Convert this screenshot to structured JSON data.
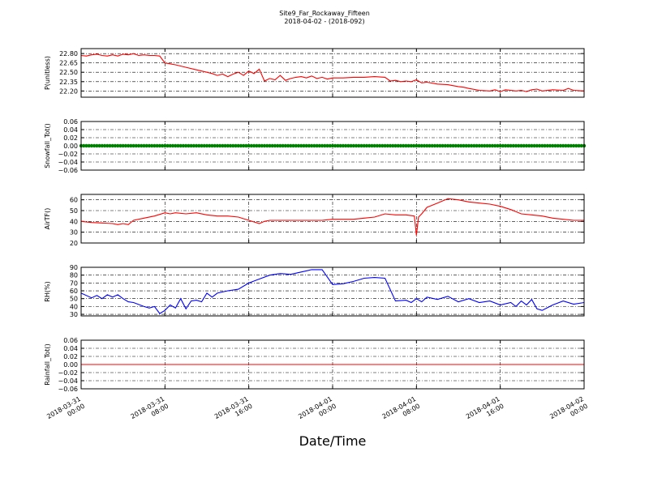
{
  "title": "Site9_Far_Rockaway_Fifteen",
  "subtitle": "2018-04-02 - (2018-092)",
  "chart_data": {
    "type": "line",
    "xlabel": "Date/Time",
    "xlim": [
      "2018-03-31 00:00",
      "2018-04-02 00:00"
    ],
    "x_ticks": [
      {
        "d": "2018-03-31",
        "t": "00:00",
        "h": 0
      },
      {
        "d": "2018-03-31",
        "t": "08:00",
        "h": 8
      },
      {
        "d": "2018-03-31",
        "t": "16:00",
        "h": 16
      },
      {
        "d": "2018-04-01",
        "t": "00:00",
        "h": 24
      },
      {
        "d": "2018-04-01",
        "t": "08:00",
        "h": 32
      },
      {
        "d": "2018-04-01",
        "t": "16:00",
        "h": 40
      },
      {
        "d": "2018-04-02",
        "t": "00:00",
        "h": 48
      }
    ],
    "grid": true,
    "panels": [
      {
        "ylabel": "P(unitless)",
        "ylim": [
          22.1,
          22.88
        ],
        "yticks": [
          "22.80",
          "22.65",
          "22.50",
          "22.35",
          "22.20"
        ],
        "ytick_values": [
          22.8,
          22.65,
          22.5,
          22.35,
          22.2
        ],
        "color": "#ff0000",
        "style": "line",
        "x_hours": [
          0,
          0.5,
          1,
          1.5,
          2,
          2.5,
          3,
          3.5,
          4,
          4.5,
          5,
          5.5,
          6,
          6.5,
          7,
          7.5,
          8,
          9,
          10,
          11,
          12,
          12.5,
          13,
          13.5,
          14,
          14.5,
          15,
          15.5,
          16,
          16.5,
          17,
          17.5,
          18,
          18.5,
          19,
          19.5,
          20,
          20.5,
          21,
          21.5,
          22,
          22.5,
          23,
          23.5,
          24,
          25,
          26,
          27,
          28,
          29,
          29.5,
          30,
          30.5,
          31,
          31.5,
          32,
          32.5,
          33,
          34,
          35,
          36,
          36.5,
          37,
          38,
          39,
          39.5,
          40,
          40.5,
          41,
          41.5,
          42,
          42.5,
          43,
          43.5,
          44,
          45,
          46,
          46.5,
          47,
          48
        ],
        "y": [
          22.77,
          22.76,
          22.78,
          22.79,
          22.77,
          22.76,
          22.78,
          22.76,
          22.79,
          22.78,
          22.8,
          22.77,
          22.78,
          22.77,
          22.77,
          22.76,
          22.65,
          22.62,
          22.58,
          22.54,
          22.5,
          22.48,
          22.45,
          22.47,
          22.43,
          22.47,
          22.5,
          22.45,
          22.52,
          22.48,
          22.55,
          22.36,
          22.4,
          22.38,
          22.45,
          22.37,
          22.4,
          22.42,
          22.43,
          22.41,
          22.44,
          22.4,
          22.42,
          22.39,
          22.41,
          22.41,
          22.42,
          22.42,
          22.43,
          22.42,
          22.36,
          22.37,
          22.35,
          22.36,
          22.35,
          22.38,
          22.33,
          22.34,
          22.31,
          22.3,
          22.27,
          22.26,
          22.24,
          22.21,
          22.2,
          22.22,
          22.19,
          22.22,
          22.21,
          22.2,
          22.21,
          22.19,
          22.22,
          22.23,
          22.2,
          22.22,
          22.21,
          22.24,
          22.21,
          22.2
        ]
      },
      {
        "ylabel": "Snowfall_Tot()",
        "ylim": [
          -0.06,
          0.06
        ],
        "yticks": [
          "0.06",
          "0.04",
          "0.02",
          "0.00",
          "−0.02",
          "−0.04",
          "−0.06"
        ],
        "ytick_values": [
          0.06,
          0.04,
          0.02,
          0.0,
          -0.02,
          -0.04,
          -0.06
        ],
        "color": "#008000",
        "style": "points",
        "x_hours": [
          0,
          48
        ],
        "y": [
          0,
          0
        ]
      },
      {
        "ylabel": "AirTF()",
        "ylim": [
          20,
          65
        ],
        "yticks": [
          "60",
          "50",
          "40",
          "30",
          "20"
        ],
        "ytick_values": [
          60,
          50,
          40,
          30,
          20
        ],
        "color": "#ff0000",
        "style": "line",
        "x_hours": [
          0,
          1,
          2,
          3,
          3.5,
          4,
          4.5,
          5,
          6,
          7,
          8,
          8.5,
          9,
          10,
          11,
          12,
          13,
          14,
          15,
          16,
          17,
          17.5,
          18,
          19,
          20,
          21,
          22,
          23,
          24,
          25,
          26,
          27,
          28,
          29,
          30,
          31,
          31.8,
          32,
          32.2,
          32.5,
          33,
          34,
          35,
          36,
          37,
          38,
          39,
          40,
          41,
          42,
          43,
          44,
          45,
          46,
          47,
          48
        ],
        "y": [
          40,
          39,
          38.5,
          38,
          37,
          38,
          37,
          41,
          43,
          45,
          48,
          47,
          48,
          47,
          48,
          46,
          45,
          45,
          44,
          41,
          38,
          40,
          41,
          41,
          41,
          41,
          41,
          41,
          42,
          42,
          42,
          43,
          44,
          47,
          46,
          46,
          45,
          27,
          44,
          47,
          53,
          57,
          61,
          60,
          58,
          57,
          56,
          54,
          51,
          47,
          46,
          45,
          43,
          42,
          41,
          41
        ]
      },
      {
        "ylabel": "RH(%)",
        "ylim": [
          28,
          90
        ],
        "yticks": [
          "90",
          "80",
          "70",
          "60",
          "50",
          "40",
          "30"
        ],
        "ytick_values": [
          90,
          80,
          70,
          60,
          50,
          40,
          30
        ],
        "color": "#0000ff",
        "style": "line",
        "x_hours": [
          0,
          1,
          1.5,
          2,
          2.5,
          3,
          3.5,
          4,
          4.5,
          5,
          6,
          6.5,
          7,
          7.5,
          8,
          8.5,
          9,
          9.5,
          10,
          10.5,
          11,
          11.5,
          12,
          12.5,
          13,
          14,
          15,
          16,
          17,
          18,
          19,
          20,
          21,
          22,
          23,
          24,
          25,
          26,
          26.5,
          27,
          28,
          29,
          30,
          31,
          31.5,
          32,
          32.5,
          33,
          34,
          35,
          36,
          37,
          38,
          39,
          40,
          41,
          41.5,
          42,
          42.5,
          43,
          43.5,
          44,
          45,
          46,
          47,
          48
        ],
        "y": [
          57,
          51,
          54,
          50,
          55,
          52,
          55,
          50,
          46,
          45,
          40,
          38,
          40,
          31,
          35,
          42,
          38,
          50,
          37,
          47,
          48,
          46,
          57,
          52,
          57,
          60,
          62,
          70,
          75,
          80,
          82,
          81,
          84,
          87,
          87,
          68,
          69,
          72,
          74,
          76,
          77,
          76,
          47,
          48,
          45,
          50,
          46,
          52,
          49,
          53,
          46,
          50,
          45,
          47,
          42,
          45,
          40,
          47,
          42,
          49,
          37,
          35,
          42,
          47,
          43,
          45
        ]
      },
      {
        "ylabel": "Rainfall_Tot()",
        "ylim": [
          -0.06,
          0.06
        ],
        "yticks": [
          "0.06",
          "0.04",
          "0.02",
          "0.00",
          "−0.02",
          "−0.04",
          "−0.06"
        ],
        "ytick_values": [
          0.06,
          0.04,
          0.02,
          0.0,
          -0.02,
          -0.04,
          -0.06
        ],
        "color": "#ff0000",
        "style": "line",
        "x_hours": [
          0,
          48
        ],
        "y": [
          0,
          0
        ]
      }
    ]
  }
}
